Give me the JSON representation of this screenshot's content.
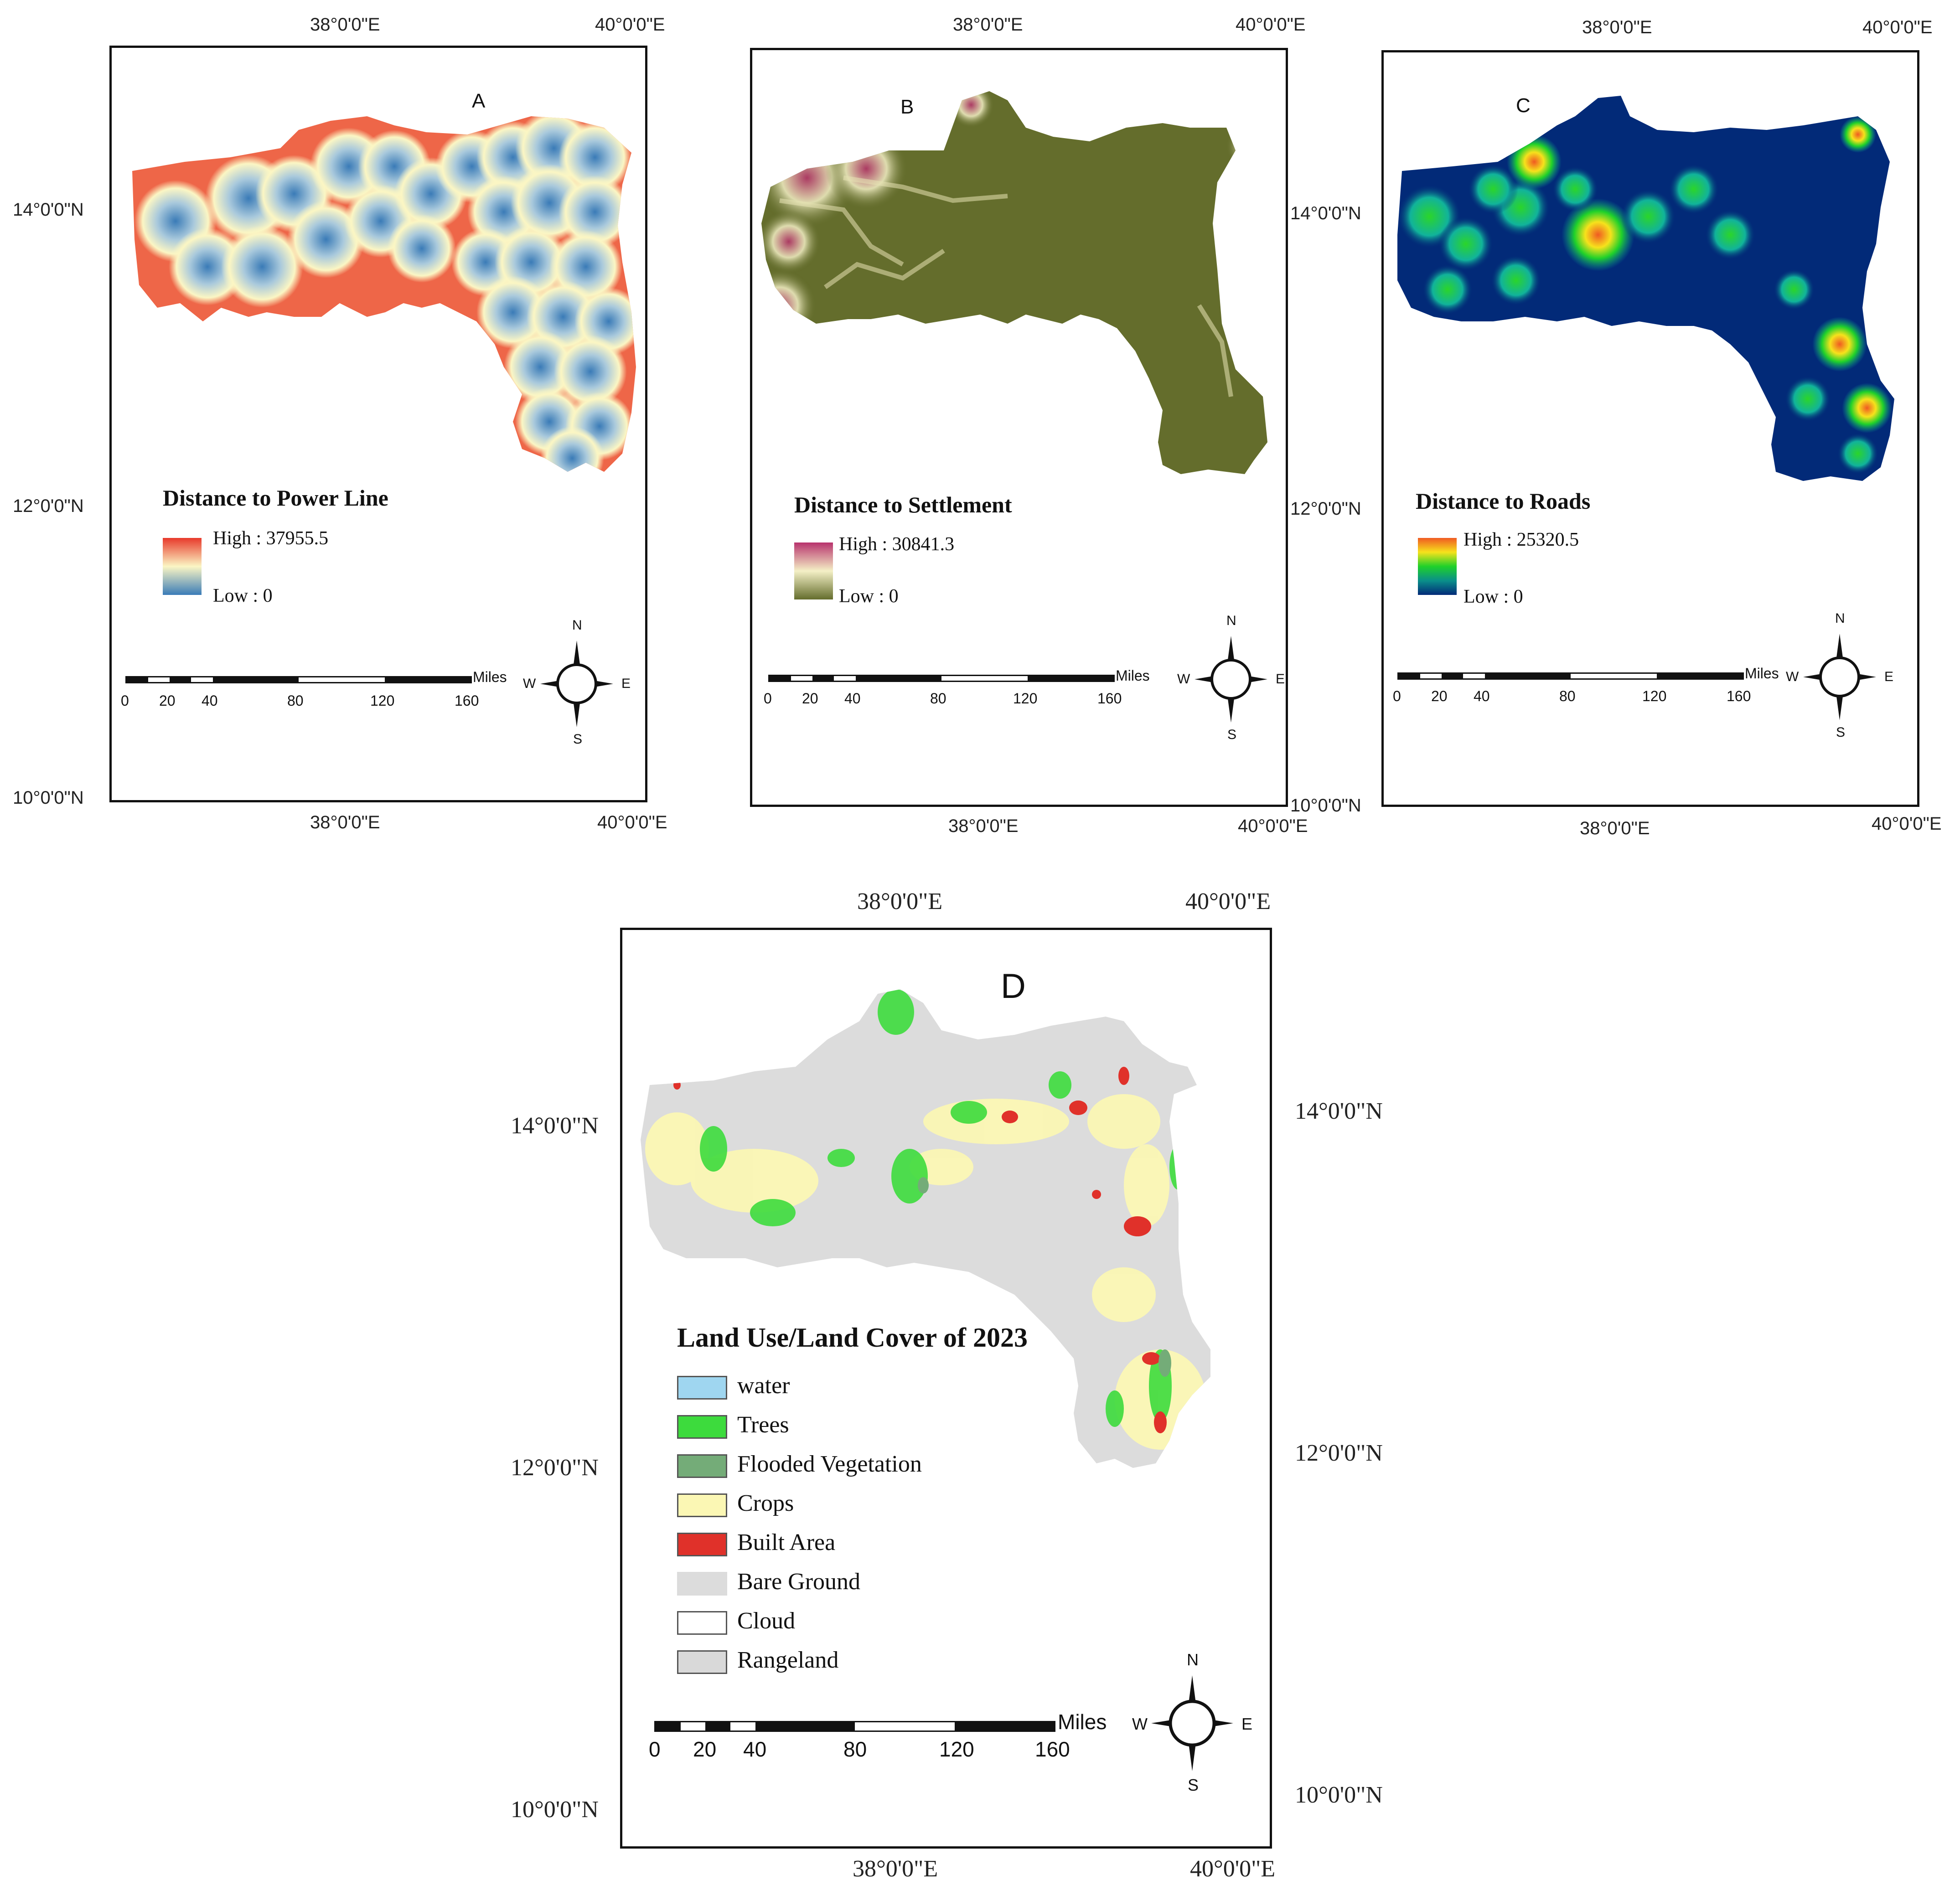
{
  "coords": {
    "lon38": "38°0'0\"E",
    "lon40": "40°0'0\"E",
    "lat14": "14°0'0\"N",
    "lat12": "12°0'0\"N",
    "lat10": "10°0'0\"N"
  },
  "scale": {
    "unit": "Miles",
    "ticks": [
      "0",
      "20",
      "40",
      "80",
      "120",
      "160"
    ]
  },
  "compass": {
    "n": "N",
    "s": "S",
    "e": "E",
    "w": "W"
  },
  "panels": {
    "a": {
      "letter": "A",
      "title": "Distance to Power Line",
      "high": "High : 37955.5",
      "low": "Low : 0",
      "colors": {
        "high": "#e8392b",
        "mid": "#fbf6c4",
        "low": "#3a7bb7"
      }
    },
    "b": {
      "letter": "B",
      "title": "Distance to Settlement",
      "high": "High : 30841.3",
      "low": "Low : 0",
      "colors": {
        "high": "#b8336d",
        "mid": "#f4f0c6",
        "low": "#646d2c"
      }
    },
    "c": {
      "letter": "C",
      "title": "Distance to Roads",
      "high": "High : 25320.5",
      "low": "Low : 0",
      "colors": {
        "high": "#f05a22",
        "mid": "#1fd12a",
        "low": "#022a78"
      }
    },
    "d": {
      "letter": "D",
      "title": "Land Use/Land Cover of 2023",
      "legend": [
        {
          "label": "water",
          "color": "#9fd6f0"
        },
        {
          "label": "Trees",
          "color": "#3ddb3d"
        },
        {
          "label": "Flooded Vegetation",
          "color": "#74ac78"
        },
        {
          "label": "Crops",
          "color": "#fbf7b4"
        },
        {
          "label": "Built Area",
          "color": "#e0312a"
        },
        {
          "label": "Bare Ground",
          "color": "#dcdcdc"
        },
        {
          "label": "Cloud",
          "color": "#ffffff"
        },
        {
          "label": "Rangeland",
          "color": "#d9d9d9"
        }
      ]
    }
  }
}
